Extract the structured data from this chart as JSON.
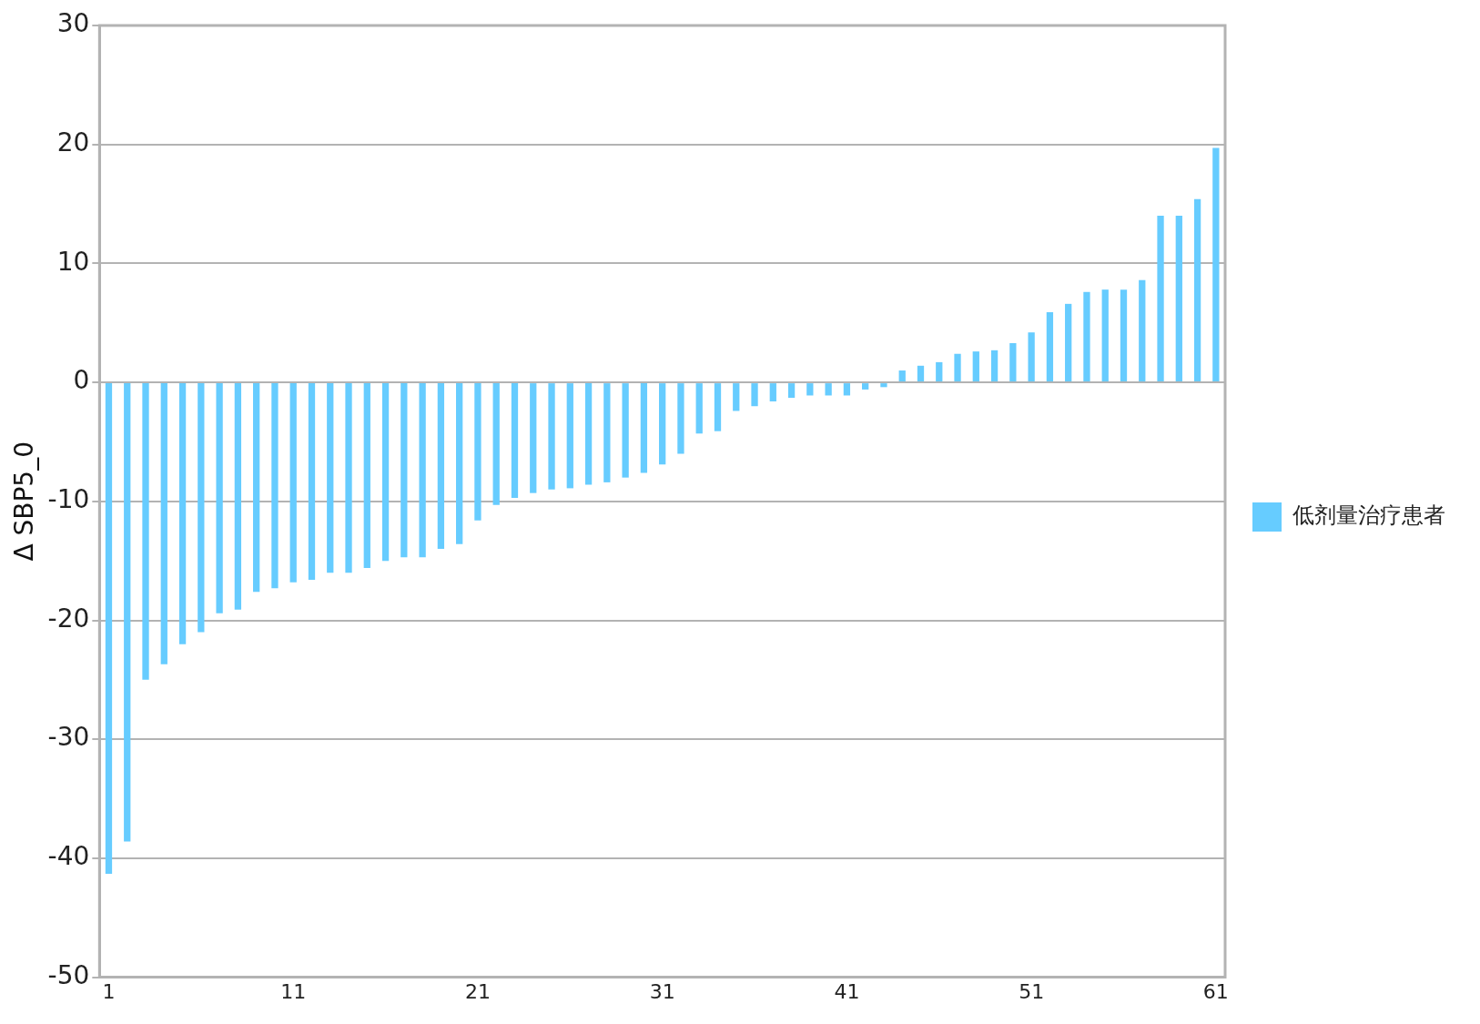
{
  "chart_data": {
    "type": "bar",
    "ylabel": "Δ SBP5_0",
    "categories": [
      "1",
      null,
      null,
      null,
      null,
      null,
      null,
      null,
      null,
      null,
      "11",
      null,
      null,
      null,
      null,
      null,
      null,
      null,
      null,
      null,
      "21",
      null,
      null,
      null,
      null,
      null,
      null,
      null,
      null,
      null,
      "31",
      null,
      null,
      null,
      null,
      null,
      null,
      null,
      null,
      null,
      "41",
      null,
      null,
      null,
      null,
      null,
      null,
      null,
      null,
      null,
      "51",
      null,
      null,
      null,
      null,
      null,
      null,
      null,
      null,
      null,
      "61"
    ],
    "series": [
      {
        "name": "低剂量治疗患者",
        "color": "#66ccff",
        "values": [
          -41.3,
          -38.6,
          -25.0,
          -23.7,
          -22.0,
          -21.0,
          -19.4,
          -19.1,
          -17.6,
          -17.3,
          -16.8,
          -16.6,
          -16.0,
          -16.0,
          -15.6,
          -15.0,
          -14.7,
          -14.7,
          -14.0,
          -13.6,
          -11.6,
          -10.3,
          -9.7,
          -9.3,
          -9.0,
          -8.9,
          -8.6,
          -8.4,
          -8.0,
          -7.6,
          -6.9,
          -6.0,
          -4.3,
          -4.1,
          -2.4,
          -2.0,
          -1.6,
          -1.3,
          -1.1,
          -1.1,
          -1.1,
          -0.6,
          -0.4,
          1.0,
          1.4,
          1.7,
          2.4,
          2.6,
          2.7,
          3.3,
          4.2,
          5.9,
          6.6,
          7.6,
          7.8,
          7.8,
          8.6,
          14.0,
          14.0,
          15.4,
          19.7
        ]
      }
    ],
    "ylim": [
      -50,
      30
    ],
    "yticks": [
      -50,
      -40,
      -30,
      -20,
      -10,
      0,
      10,
      20,
      30
    ],
    "grid": "y",
    "legend": "right"
  }
}
